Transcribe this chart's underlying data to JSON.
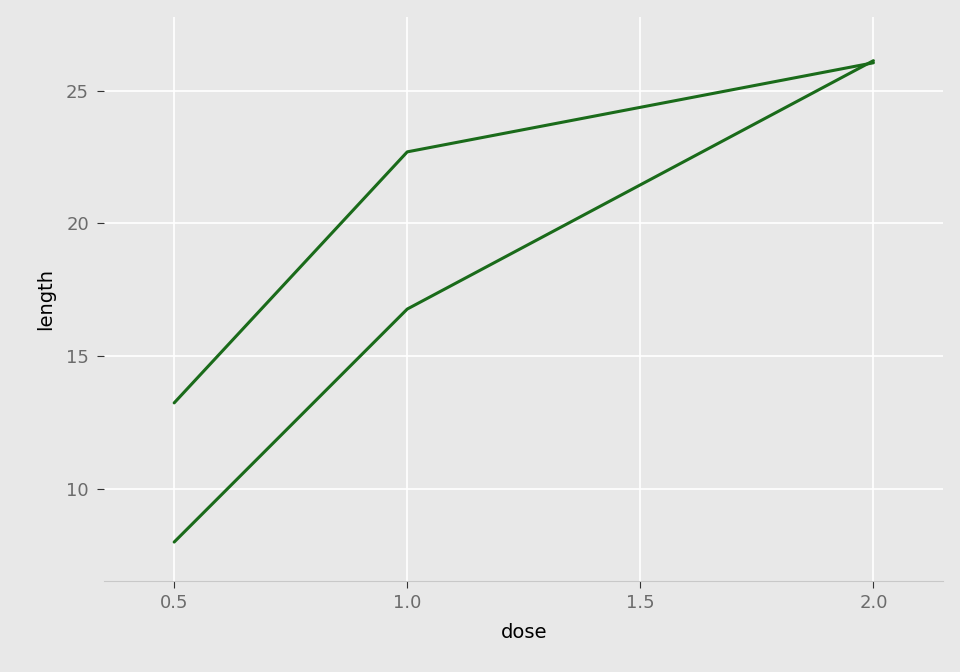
{
  "line1": {
    "x": [
      0.5,
      1.0,
      2.0
    ],
    "y": [
      13.23,
      22.7,
      26.06
    ]
  },
  "line2": {
    "x": [
      0.5,
      1.0,
      2.0
    ],
    "y": [
      7.98,
      16.77,
      26.14
    ]
  },
  "line_color": "#1a6b1a",
  "line_width": 2.2,
  "xlabel": "dose",
  "ylabel": "length",
  "xlabel_fontsize": 14,
  "ylabel_fontsize": 14,
  "tick_fontsize": 13,
  "tick_label_color": "#6b6b6b",
  "axis_label_color": "#000000",
  "panel_background": "#e8e8e8",
  "plot_background": "#e8e8e8",
  "grid_color": "#ffffff",
  "grid_linewidth": 1.2,
  "xlim": [
    0.35,
    2.15
  ],
  "ylim": [
    6.5,
    27.8
  ],
  "xticks": [
    0.5,
    1.0,
    1.5,
    2.0
  ],
  "yticks": [
    10,
    15,
    20,
    25
  ],
  "xtick_labels": [
    "0.5",
    "1.0",
    "1.5",
    "2.0"
  ],
  "ytick_labels": [
    "10",
    "15",
    "20",
    "25"
  ]
}
